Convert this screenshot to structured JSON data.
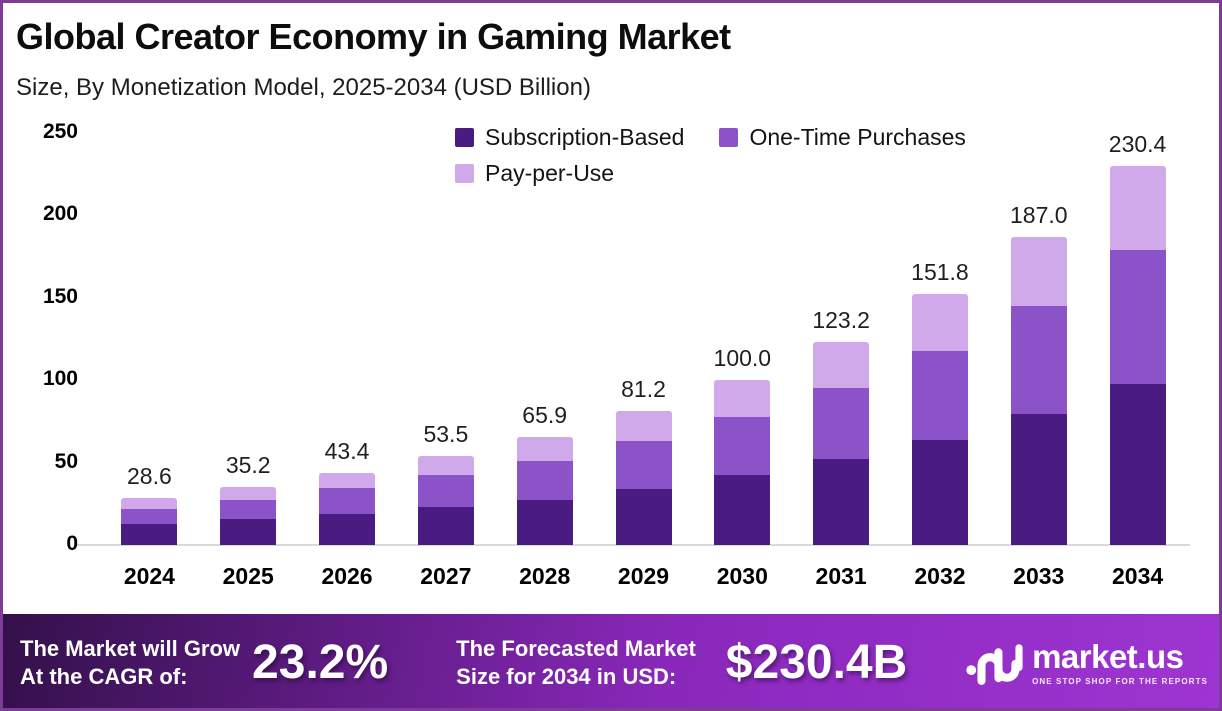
{
  "chart_data": {
    "type": "bar",
    "stacked": true,
    "title": "Global Creator Economy in Gaming Market",
    "subtitle": "Size, By Monetization Model, 2025-2034 (USD Billion)",
    "categories": [
      "2024",
      "2025",
      "2026",
      "2027",
      "2028",
      "2029",
      "2030",
      "2031",
      "2032",
      "2033",
      "2034"
    ],
    "series": [
      {
        "name": "Subscription-Based",
        "color": "#4a1c82",
        "values": [
          12.5,
          15.6,
          18.7,
          23.0,
          27.3,
          33.9,
          42.4,
          52.1,
          63.7,
          79.4,
          97.8
        ]
      },
      {
        "name": "One-Time Purchases",
        "color": "#8c52c8",
        "values": [
          9.3,
          11.5,
          15.7,
          19.2,
          23.9,
          28.9,
          35.0,
          43.3,
          53.8,
          65.5,
          81.5
        ]
      },
      {
        "name": "Pay-per-Use",
        "color": "#cfa9ea",
        "values": [
          6.8,
          8.1,
          9.0,
          11.3,
          14.7,
          18.4,
          22.6,
          27.8,
          34.3,
          42.1,
          51.1
        ]
      }
    ],
    "totals": [
      28.6,
      35.2,
      43.4,
      53.5,
      65.9,
      81.2,
      100.0,
      123.2,
      151.8,
      187.0,
      230.4
    ],
    "ylim": [
      0,
      250
    ],
    "y_ticks": [
      0,
      50,
      100,
      150,
      200,
      250
    ],
    "grid": false,
    "legend_position": "top-center",
    "total_labels_shown": true
  },
  "banner": {
    "cagr_label_line1": "The Market will Grow",
    "cagr_label_line2": "At the CAGR of:",
    "cagr_value": "23.2%",
    "forecast_label_line1": "The Forecasted Market",
    "forecast_label_line2": "Size for 2034 in USD:",
    "forecast_value": "$230.4B",
    "logo_text": "market.us",
    "logo_tagline": "ONE STOP SHOP FOR THE REPORTS"
  },
  "colors": {
    "frame_border": "#7d3c98",
    "baseline": "#d9d9d9",
    "banner_gradient_start": "#33104a",
    "banner_gradient_mid": "#8a28bb",
    "banner_gradient_end": "#9e35d2"
  }
}
